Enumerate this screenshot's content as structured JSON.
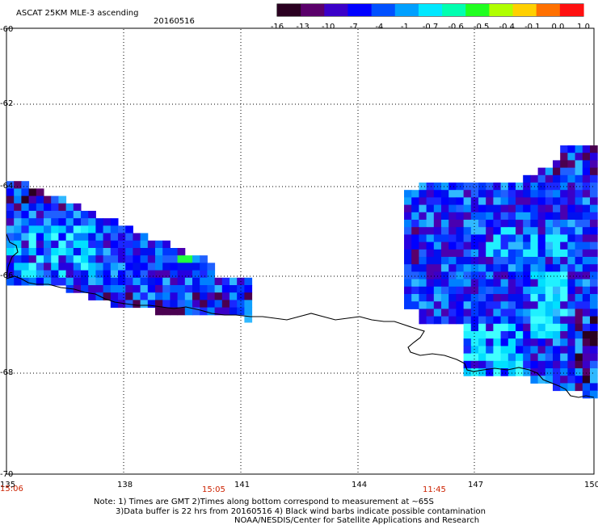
{
  "header": {
    "title": "ASCAT 25KM MLE-3 ascending",
    "date": "20160516"
  },
  "colorbar": {
    "labels": [
      "-16",
      "-13",
      "-10",
      "-7",
      "-4",
      "-1",
      "-0.7",
      "-0.6",
      "-0.5",
      "-0.4",
      "-0.1",
      "0.0",
      "1.0"
    ],
    "colors": [
      "#2a0020",
      "#5a006a",
      "#3a00c8",
      "#0000ff",
      "#0050ff",
      "#00a0ff",
      "#00e8ff",
      "#00ffb0",
      "#20ff20",
      "#b0ff00",
      "#ffd000",
      "#ff7000",
      "#ff1010"
    ]
  },
  "axes": {
    "lat_labels": [
      "-60",
      "-62",
      "-64",
      "-66",
      "-68",
      "-70"
    ],
    "lon_labels": [
      "135",
      "138",
      "141",
      "144",
      "147",
      "150"
    ],
    "time_labels": [
      "15:06",
      "15:05",
      "11:45"
    ]
  },
  "notes": {
    "line1": "Note: 1) Times are GMT 2)Times along bottom correspond to measurement at ~65S",
    "line2": "3)Data buffer is 22 hrs from 20160516 4) Black wind barbs indicate possible contamination",
    "line3": "NOAA/NESDIS/Center for Satellite Applications and Research"
  }
}
